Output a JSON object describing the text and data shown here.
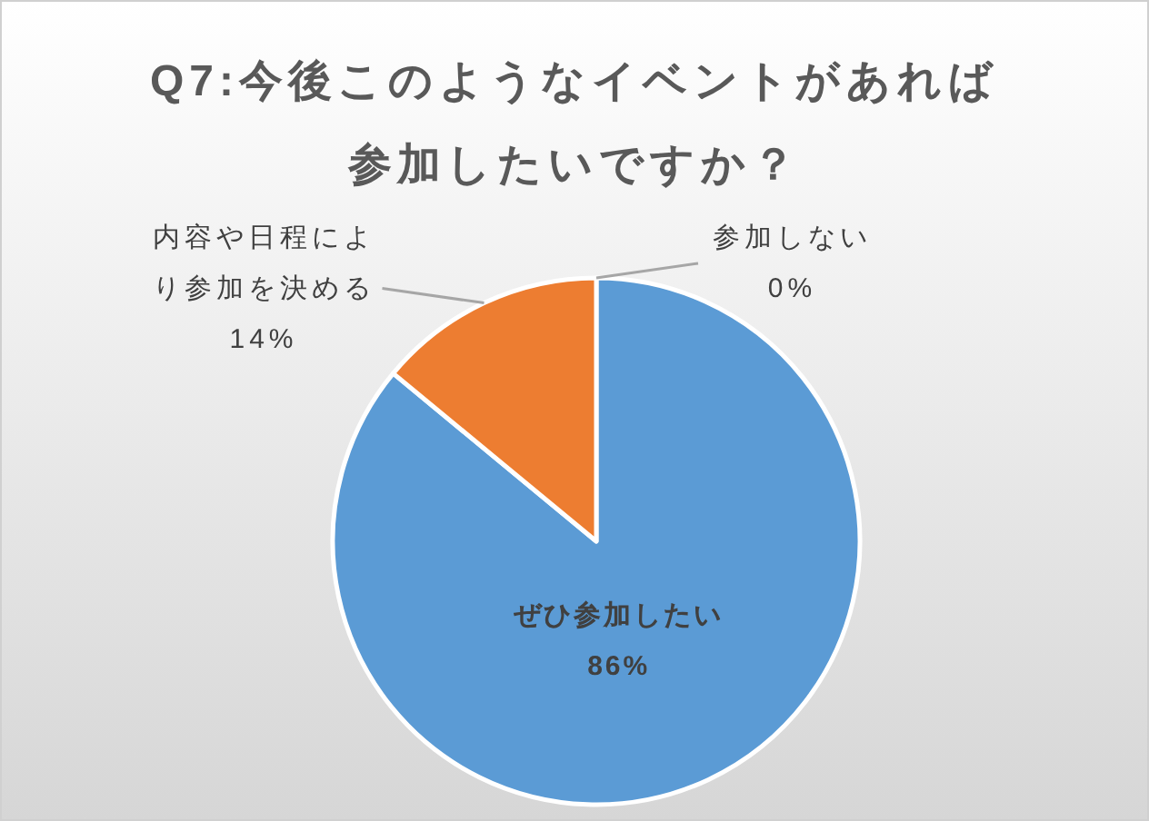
{
  "chart_data": {
    "type": "pie",
    "title": "Q7:今後このようなイベントがあれば参加したいですか？",
    "categories": [
      "ぜひ参加したい",
      "内容や日程により参加を決める",
      "参加しない"
    ],
    "values": [
      86,
      14,
      0
    ],
    "colors": [
      "#5b9bd5",
      "#ed7d31",
      null
    ],
    "value_labels": [
      "86%",
      "14%",
      "0%"
    ]
  }
}
